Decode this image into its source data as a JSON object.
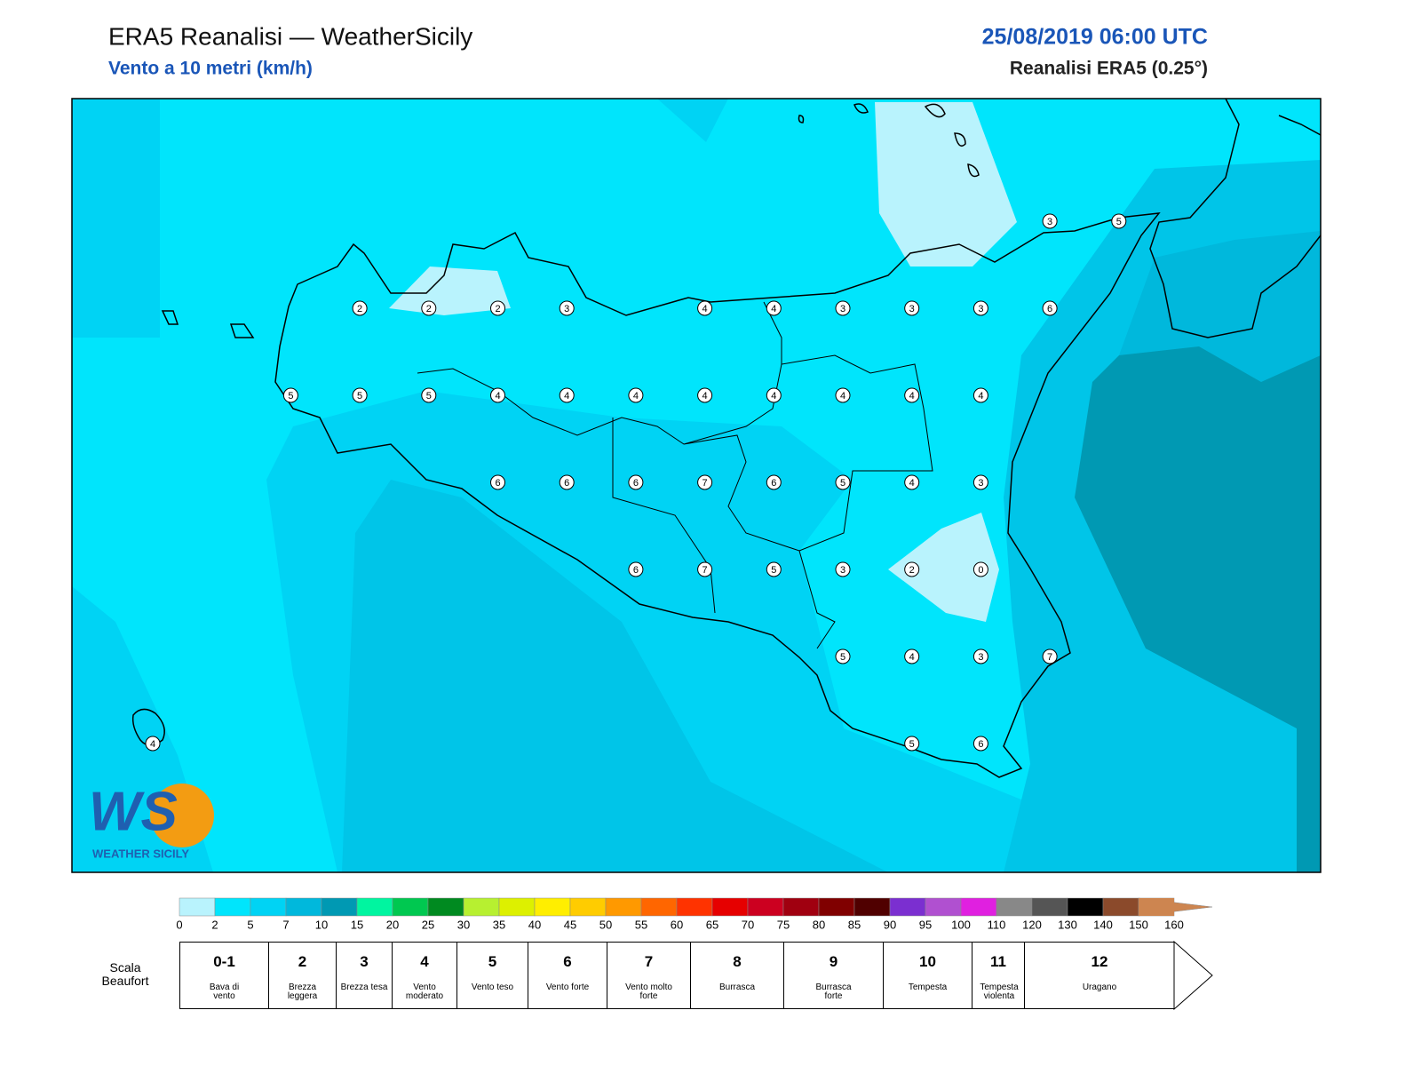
{
  "header": {
    "title": "ERA5 Reanalisi — WeatherSicily",
    "subtitle": "Vento a 10 metri (km/h)",
    "date": "25/08/2019 06:00 UTC",
    "source": "Reanalisi ERA5 (0.25°)"
  },
  "map": {
    "stations": [
      [
        null,
        null,
        null,
        null,
        null,
        null,
        null,
        null,
        null,
        null,
        null,
        null,
        null,
        3,
        5
      ],
      [
        null,
        null,
        null,
        2,
        2,
        2,
        3,
        null,
        4,
        4,
        3,
        3,
        3,
        6,
        null
      ],
      [
        null,
        null,
        5,
        5,
        5,
        4,
        4,
        4,
        4,
        4,
        4,
        4,
        4,
        null,
        null
      ],
      [
        null,
        null,
        null,
        null,
        null,
        6,
        6,
        6,
        7,
        6,
        5,
        4,
        3,
        null,
        null
      ],
      [
        null,
        null,
        null,
        null,
        null,
        null,
        null,
        6,
        7,
        5,
        3,
        2,
        0,
        null,
        null
      ],
      [
        null,
        null,
        null,
        null,
        null,
        null,
        null,
        null,
        null,
        null,
        5,
        4,
        3,
        7,
        null
      ],
      [
        4,
        null,
        null,
        null,
        null,
        null,
        null,
        null,
        null,
        null,
        null,
        5,
        6,
        null,
        null
      ]
    ]
  },
  "logo": {
    "letters": "WS",
    "text": "WEATHER SICILY"
  },
  "colorbar": {
    "ticks": [
      0,
      2,
      5,
      7,
      10,
      15,
      20,
      25,
      30,
      35,
      40,
      45,
      50,
      55,
      60,
      65,
      70,
      75,
      80,
      85,
      90,
      95,
      100,
      110,
      120,
      130,
      140,
      150,
      160
    ],
    "colors": [
      "#b9f3fd",
      "#00e5fc",
      "#00d3f4",
      "#00b8dc",
      "#0099b3",
      "#00f5a0",
      "#00c850",
      "#008a20",
      "#b7f030",
      "#ddf000",
      "#ffee00",
      "#ffcc00",
      "#ff9900",
      "#ff6600",
      "#ff3300",
      "#e60000",
      "#cc0020",
      "#a00010",
      "#800000",
      "#500000",
      "#7b2fd0",
      "#b050d0",
      "#e020e0",
      "#888888",
      "#555555",
      "#000000",
      "#8b4a2b",
      "#cd8550"
    ]
  },
  "beaufort": {
    "label": "Scala Beaufort",
    "levels": [
      {
        "force": "0-1",
        "description": "Bava di vento"
      },
      {
        "force": 2,
        "description": "Brezza leggera"
      },
      {
        "force": 3,
        "description": "Brezza tesa"
      },
      {
        "force": 4,
        "description": "Vento moderato"
      },
      {
        "force": 5,
        "description": "Vento teso"
      },
      {
        "force": 6,
        "description": "Vento forte"
      },
      {
        "force": 7,
        "description": "Vento molto forte"
      },
      {
        "force": 8,
        "description": "Burrasca"
      },
      {
        "force": 9,
        "description": "Burrasca forte"
      },
      {
        "force": 10,
        "description": "Tempesta"
      },
      {
        "force": 11,
        "description": "Tempesta violenta"
      },
      {
        "force": 12,
        "description": "Uragano"
      }
    ]
  }
}
